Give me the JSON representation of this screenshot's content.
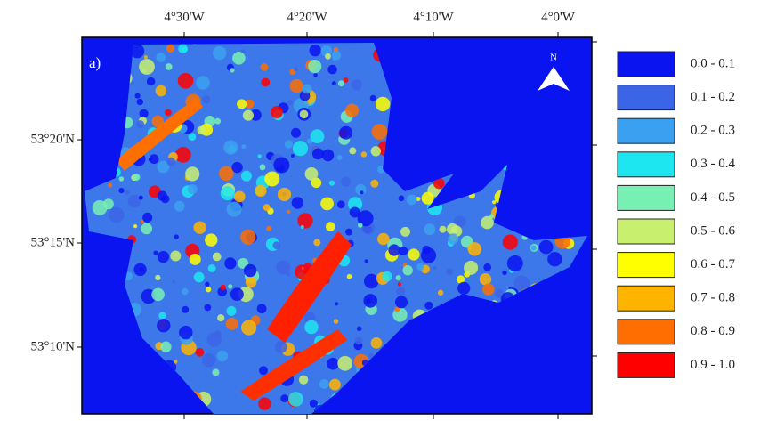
{
  "map": {
    "panel_label": "a)",
    "north_label": "N",
    "lon_labels": [
      "4°30'W",
      "4°20'W",
      "4°10'W",
      "4°0'W"
    ],
    "lat_labels": [
      "53°20'N",
      "53°15'N",
      "53°10'N"
    ]
  },
  "legend": {
    "items": [
      {
        "label": "0.0 - 0.1",
        "color": "#0a14f0"
      },
      {
        "label": "0.1 - 0.2",
        "color": "#3c64e6"
      },
      {
        "label": "0.2 - 0.3",
        "color": "#3ca0f0"
      },
      {
        "label": "0.3 - 0.4",
        "color": "#1ee6f0"
      },
      {
        "label": "0.4 - 0.5",
        "color": "#78f0b4"
      },
      {
        "label": "0.5 - 0.6",
        "color": "#c8f06e"
      },
      {
        "label": "0.6 - 0.7",
        "color": "#ffff00"
      },
      {
        "label": "0.7 - 0.8",
        "color": "#ffb400"
      },
      {
        "label": "0.8 - 0.9",
        "color": "#ff6e00"
      },
      {
        "label": "0.9 - 1.0",
        "color": "#ff0000"
      }
    ]
  }
}
